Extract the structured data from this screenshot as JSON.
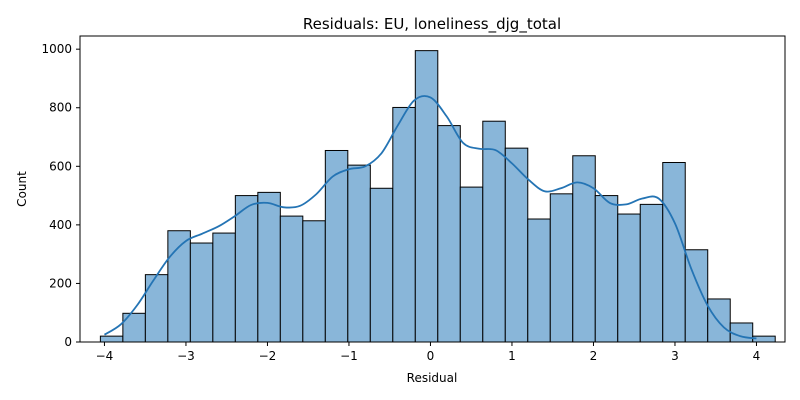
{
  "chart_data": {
    "type": "bar",
    "title": "Residuals: EU, loneliness_djg_total",
    "xlabel": "Residual",
    "ylabel": "Count",
    "xlim": [
      -4.3,
      4.35
    ],
    "ylim": [
      0,
      1045
    ],
    "xticks": [
      -4,
      -3,
      -2,
      -1,
      0,
      1,
      2,
      3,
      4
    ],
    "xtick_labels": [
      "−4",
      "−3",
      "−2",
      "−1",
      "0",
      "1",
      "2",
      "3",
      "4"
    ],
    "yticks": [
      0,
      200,
      400,
      600,
      800,
      1000
    ],
    "ytick_labels": [
      "0",
      "200",
      "400",
      "600",
      "800",
      "1000"
    ],
    "grid": false,
    "legend": false,
    "bin_edges": [
      -4.05,
      -3.774,
      -3.498,
      -3.222,
      -2.946,
      -2.67,
      -2.394,
      -2.118,
      -1.842,
      -1.566,
      -1.29,
      -1.014,
      -0.738,
      -0.462,
      -0.186,
      0.09,
      0.366,
      0.642,
      0.918,
      1.194,
      1.47,
      1.746,
      2.022,
      2.298,
      2.574,
      2.85,
      3.126,
      3.402,
      3.678,
      3.954,
      4.23
    ],
    "counts": [
      20,
      98,
      230,
      380,
      338,
      372,
      500,
      511,
      430,
      414,
      654,
      604,
      525,
      801,
      995,
      739,
      529,
      754,
      662,
      420,
      506,
      636,
      500,
      437,
      470,
      613,
      315,
      147,
      65,
      20
    ],
    "kde": {
      "x": [
        -4.0,
        -3.8,
        -3.6,
        -3.4,
        -3.2,
        -3.0,
        -2.8,
        -2.6,
        -2.4,
        -2.2,
        -2.0,
        -1.8,
        -1.6,
        -1.4,
        -1.2,
        -1.0,
        -0.8,
        -0.6,
        -0.4,
        -0.2,
        0.0,
        0.2,
        0.4,
        0.6,
        0.8,
        1.0,
        1.2,
        1.4,
        1.6,
        1.8,
        2.0,
        2.2,
        2.4,
        2.6,
        2.8,
        3.0,
        3.2,
        3.4,
        3.6,
        3.8,
        4.0
      ],
      "y": [
        25,
        60,
        125,
        210,
        290,
        345,
        370,
        395,
        430,
        468,
        475,
        460,
        465,
        505,
        565,
        590,
        600,
        645,
        740,
        825,
        835,
        770,
        680,
        660,
        655,
        610,
        555,
        515,
        525,
        545,
        525,
        475,
        470,
        490,
        490,
        405,
        250,
        125,
        50,
        20,
        12
      ]
    },
    "colors": {
      "bar_fill": "#89b6d9",
      "bar_edge": "#000000",
      "kde_line": "#2474b4"
    }
  }
}
